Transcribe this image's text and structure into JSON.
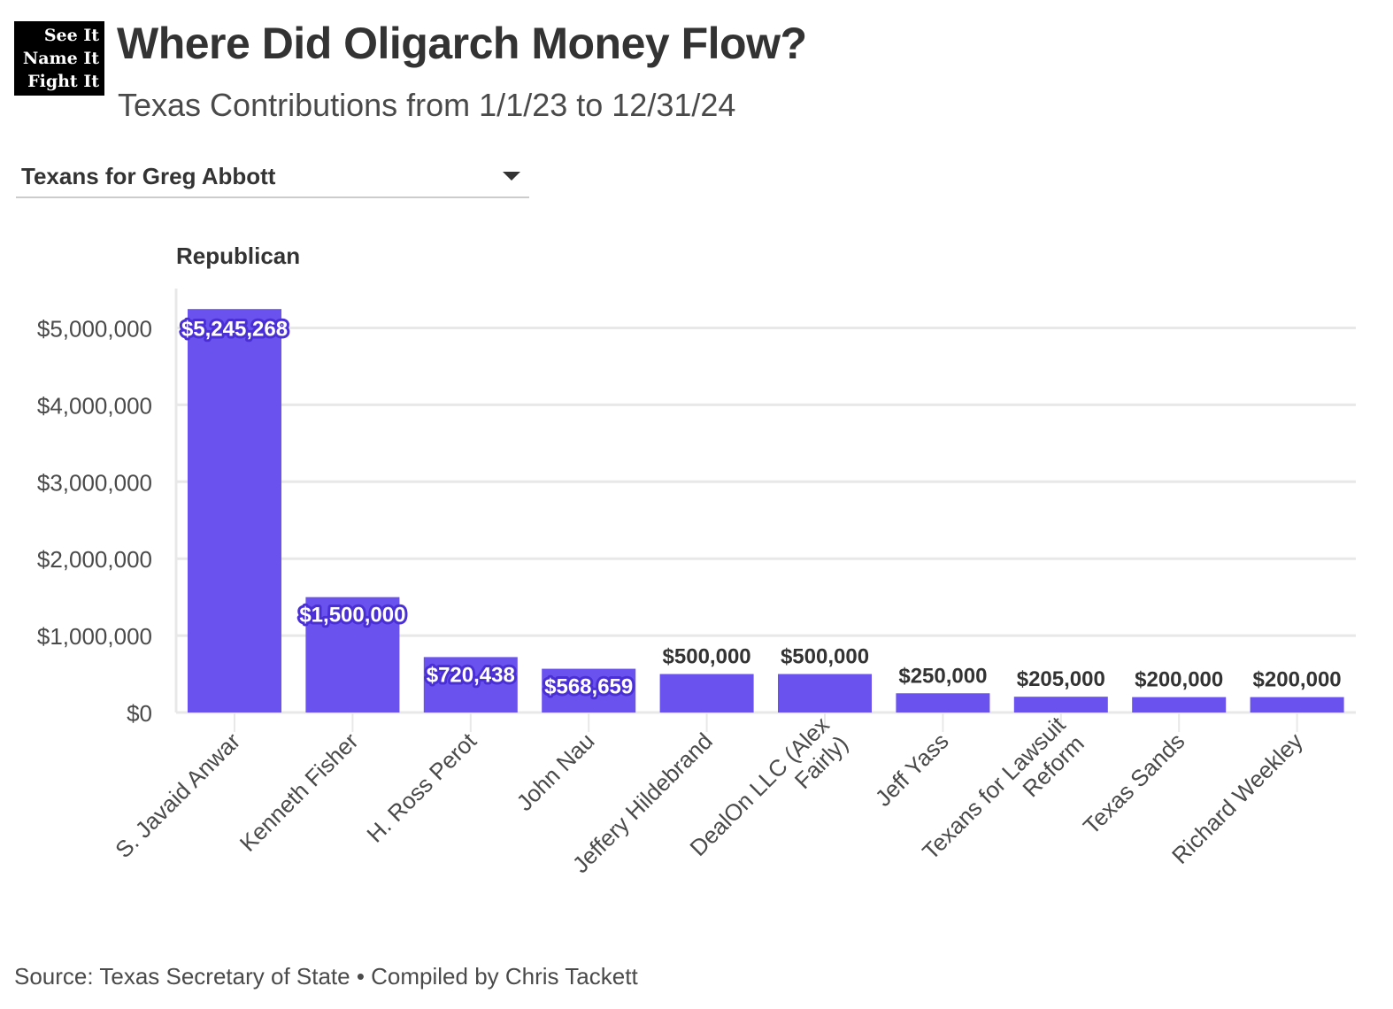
{
  "logo": {
    "lines": [
      "See It",
      "Name It",
      "Fight It"
    ]
  },
  "header": {
    "title": "Where Did Oligarch Money Flow?",
    "subtitle": "Texas Contributions from 1/1/23 to 12/31/24"
  },
  "filter": {
    "selected": "Texans for Greg Abbott",
    "icon": "caret-down-icon"
  },
  "footer": {
    "source": "Source: Texas Secretary of State • Compiled by Chris Tackett"
  },
  "colors": {
    "bar": "#6a52ee",
    "label_halo": "#4a2fd6",
    "grid": "#e8e8e8",
    "text": "#333333"
  },
  "chart_data": {
    "type": "bar",
    "panel_label": "Republican",
    "categories": [
      "S. Javaid Anwar",
      "Kenneth Fisher",
      "H. Ross Perot",
      "John Nau",
      "Jeffery Hildebrand",
      "DealOn LLC (Alex Fairly)",
      "Jeff Yass",
      "Texans for Lawsuit Reform",
      "Texas Sands",
      "Richard Weekley"
    ],
    "category_label_lines": [
      [
        "S. Javaid Anwar"
      ],
      [
        "Kenneth Fisher"
      ],
      [
        "H. Ross Perot"
      ],
      [
        "John Nau"
      ],
      [
        "Jeffery Hildebrand"
      ],
      [
        "DealOn LLC (Alex",
        "Fairly)"
      ],
      [
        "Jeff Yass"
      ],
      [
        "Texans for Lawsuit",
        "Reform"
      ],
      [
        "Texas Sands"
      ],
      [
        "Richard Weekley"
      ]
    ],
    "values": [
      5245268,
      1500000,
      720438,
      568659,
      500000,
      500000,
      250000,
      205000,
      200000,
      200000
    ],
    "value_labels": [
      "$5,245,268",
      "$1,500,000",
      "$720,438",
      "$568,659",
      "$500,000",
      "$500,000",
      "$250,000",
      "$205,000",
      "$200,000",
      "$200,000"
    ],
    "label_inside": [
      true,
      true,
      true,
      true,
      false,
      false,
      false,
      false,
      false,
      false
    ],
    "yticks": [
      0,
      1000000,
      2000000,
      3000000,
      4000000,
      5000000
    ],
    "ytick_labels": [
      "$0",
      "$1,000,000",
      "$2,000,000",
      "$3,000,000",
      "$4,000,000",
      "$5,000,000"
    ],
    "ylim": [
      0,
      5245268
    ],
    "grid": true,
    "legend": "none"
  }
}
